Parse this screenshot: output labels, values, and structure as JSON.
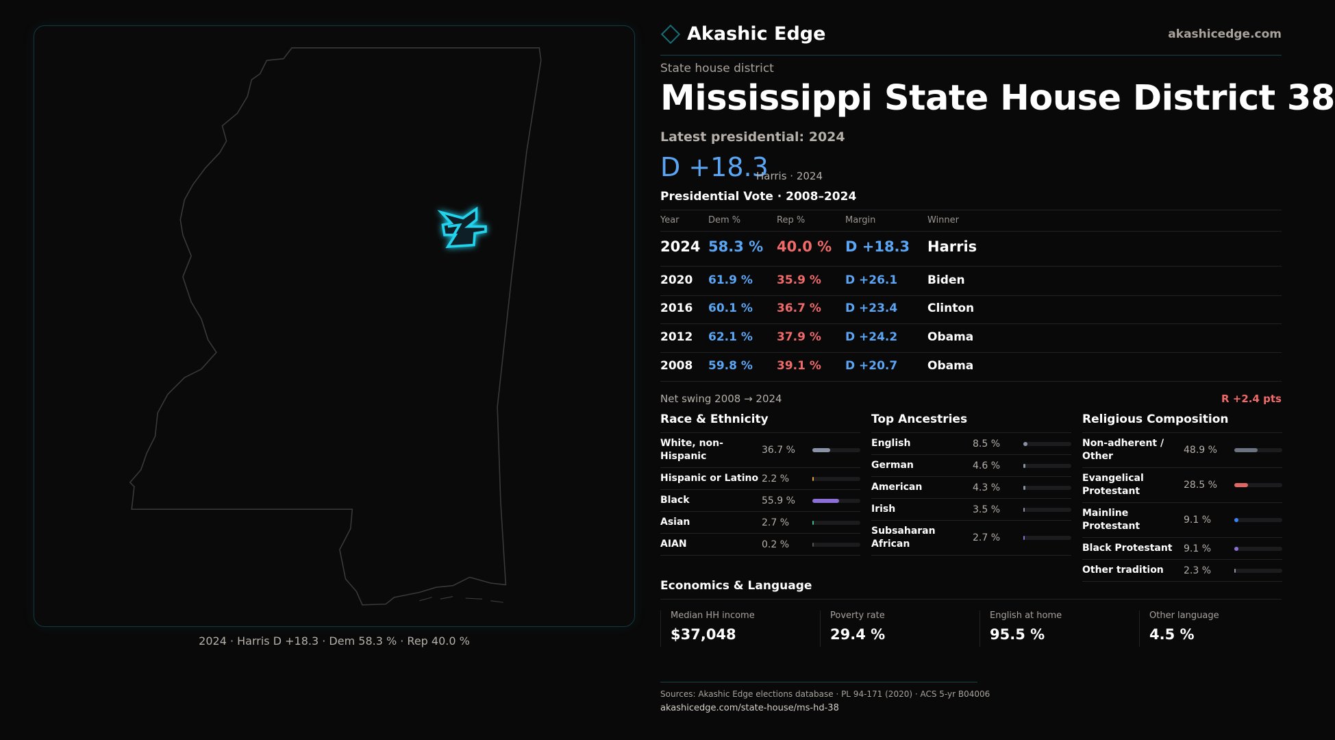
{
  "map": {
    "caption": "2024 · Harris D +18.3 · Dem 58.3 % · Rep 40.0 %",
    "highlight_color": "#22d3ee"
  },
  "header": {
    "brand": "Akashic Edge",
    "site": "akashicedge.com"
  },
  "kicker": "State house district",
  "title": "Mississippi State House District 38",
  "latest": "Latest presidential: 2024",
  "margin": {
    "value": "D +18.3",
    "sub": "Harris · 2024"
  },
  "pres": {
    "heading": "Presidential Vote · 2008–2024",
    "columns": [
      "Year",
      "Dem %",
      "Rep %",
      "Margin",
      "Winner"
    ],
    "rows": [
      [
        "2024",
        "58.3 %",
        "40.0 %",
        "D +18.3",
        "Harris"
      ],
      [
        "2020",
        "61.9 %",
        "35.9 %",
        "D +26.1",
        "Biden"
      ],
      [
        "2016",
        "60.1 %",
        "36.7 %",
        "D +23.4",
        "Clinton"
      ],
      [
        "2012",
        "62.1 %",
        "37.9 %",
        "D +24.2",
        "Obama"
      ],
      [
        "2008",
        "59.8 %",
        "39.1 %",
        "D +20.7",
        "Obama"
      ]
    ]
  },
  "swing": {
    "label": "Net swing 2008 → 2024",
    "value": "R +2.4 pts"
  },
  "race": {
    "title": "Race & Ethnicity",
    "items": [
      {
        "label": "White, non-Hispanic",
        "value": "36.7 %",
        "pct": 36.7,
        "color": "#8a93a6"
      },
      {
        "label": "Hispanic or Latino",
        "value": "2.2 %",
        "pct": 2.2,
        "color": "#d9a33a"
      },
      {
        "label": "Black",
        "value": "55.9 %",
        "pct": 55.9,
        "color": "#8b6fd6"
      },
      {
        "label": "Asian",
        "value": "2.7 %",
        "pct": 2.7,
        "color": "#3fb68b"
      },
      {
        "label": "AIAN",
        "value": "0.2 %",
        "pct": 0.2,
        "color": "#555"
      }
    ]
  },
  "ancestry": {
    "title": "Top Ancestries",
    "items": [
      {
        "label": "English",
        "value": "8.5 %",
        "pct": 8.5,
        "color": "#8a93a6"
      },
      {
        "label": "German",
        "value": "4.6 %",
        "pct": 4.6,
        "color": "#8a93a6"
      },
      {
        "label": "American",
        "value": "4.3 %",
        "pct": 4.3,
        "color": "#8a93a6"
      },
      {
        "label": "Irish",
        "value": "3.5 %",
        "pct": 3.5,
        "color": "#8a93a6"
      },
      {
        "label": "Subsaharan African",
        "value": "2.7 %",
        "pct": 2.7,
        "color": "#8b6fd6"
      }
    ]
  },
  "religion": {
    "title": "Religious Composition",
    "items": [
      {
        "label": "Non-adherent / Other",
        "value": "48.9 %",
        "pct": 48.9,
        "color": "#6b7280"
      },
      {
        "label": "Evangelical Protestant",
        "value": "28.5 %",
        "pct": 28.5,
        "color": "#e06666"
      },
      {
        "label": "Mainline Protestant",
        "value": "9.1 %",
        "pct": 9.1,
        "color": "#3b82f6"
      },
      {
        "label": "Black Protestant",
        "value": "9.1 %",
        "pct": 9.1,
        "color": "#8b6fd6"
      },
      {
        "label": "Other tradition",
        "value": "2.3 %",
        "pct": 2.3,
        "color": "#8a93a6"
      }
    ]
  },
  "econ": {
    "title": "Economics & Language",
    "cards": [
      {
        "label": "Median HH income",
        "value": "$37,048"
      },
      {
        "label": "Poverty rate",
        "value": "29.4 %"
      },
      {
        "label": "English at home",
        "value": "95.5 %"
      },
      {
        "label": "Other language",
        "value": "4.5 %"
      }
    ]
  },
  "footer": {
    "sources": "Sources: Akashic Edge elections database · PL 94-171 (2020) · ACS 5-yr B04006",
    "url": "akashicedge.com/state-house/ms-hd-38"
  }
}
